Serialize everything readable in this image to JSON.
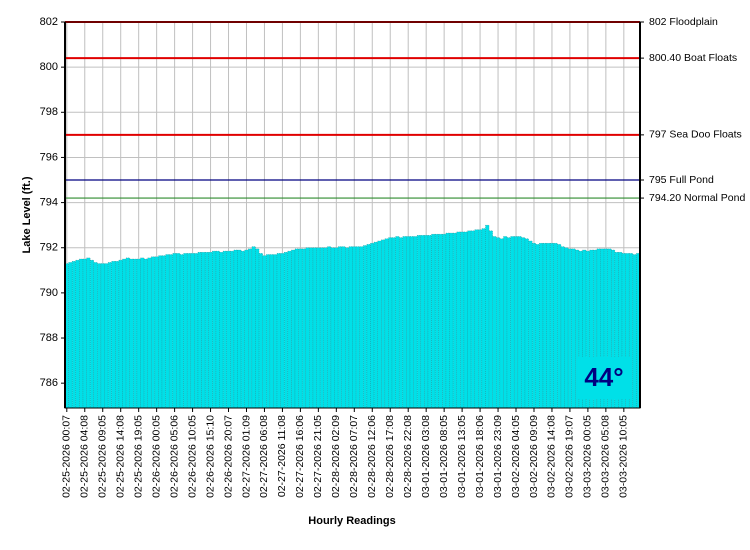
{
  "chart_data": {
    "type": "bar",
    "y_label": "Lake Level (ft.)",
    "x_label": "Hourly Readings",
    "badge": "44°",
    "color": "#00e0e8",
    "ylim": [
      784.9,
      802
    ],
    "yticks": [
      786,
      788,
      790,
      792,
      794,
      796,
      798,
      800,
      802
    ],
    "grid": true,
    "reference_lines": [
      {
        "label": "802 Floodplain",
        "value": 802,
        "color": "#e00000"
      },
      {
        "label": "800.40 Boat Floats",
        "value": 800.4,
        "color": "#e00000"
      },
      {
        "label": "797 Sea Doo Floats",
        "value": 797,
        "color": "#e00000"
      },
      {
        "label": "795 Full Pond",
        "value": 795,
        "color": "#000080"
      },
      {
        "label": "794.20 Normal Pond",
        "value": 794.2,
        "color": "#2e8b2e"
      }
    ],
    "categories": [
      "02-25-2026 00:07",
      null,
      null,
      null,
      null,
      "02-25-2026 04:08",
      null,
      null,
      null,
      null,
      "02-25-2026 09:05",
      null,
      null,
      null,
      null,
      "02-25-2026 14:08",
      null,
      null,
      null,
      null,
      "02-25-2026 19:05",
      null,
      null,
      null,
      null,
      "02-26-2026 00:05",
      null,
      null,
      null,
      null,
      "02-26-2026 05:06",
      null,
      null,
      null,
      null,
      "02-26-2026 10:05",
      null,
      null,
      null,
      null,
      "02-26-2026 15:10",
      null,
      null,
      null,
      null,
      "02-26-2026 20:07",
      null,
      null,
      null,
      null,
      "02-27-2026 01:09",
      null,
      null,
      null,
      null,
      "02-27-2026 06:08",
      null,
      null,
      null,
      null,
      "02-27-2026 11:08",
      null,
      null,
      null,
      null,
      "02-27-2026 16:06",
      null,
      null,
      null,
      null,
      "02-27-2026 21:05",
      null,
      null,
      null,
      null,
      "02-28-2026 02:09",
      null,
      null,
      null,
      null,
      "02-28-2026 07:07",
      null,
      null,
      null,
      null,
      "02-28-2026 12:06",
      null,
      null,
      null,
      null,
      "02-28-2026 17:08",
      null,
      null,
      null,
      null,
      "02-28-2026 22:08",
      null,
      null,
      null,
      null,
      "03-01-2026 03:08",
      null,
      null,
      null,
      null,
      "03-01-2026 08:05",
      null,
      null,
      null,
      null,
      "03-01-2026 13:05",
      null,
      null,
      null,
      null,
      "03-01-2026 18:06",
      null,
      null,
      null,
      null,
      "03-01-2026 23:09",
      null,
      null,
      null,
      null,
      "03-02-2026 04:05",
      null,
      null,
      null,
      null,
      "03-02-2026 09:09",
      null,
      null,
      null,
      null,
      "03-02-2026 14:08",
      null,
      null,
      null,
      null,
      "03-02-2026 19:07",
      null,
      null,
      null,
      null,
      "03-03-2026 00:05",
      null,
      null,
      null,
      null,
      "03-03-2026 05:08",
      null,
      null,
      null,
      null,
      "03-03-2026 10:05",
      null,
      null,
      null,
      null
    ],
    "values": [
      791.3,
      791.35,
      791.4,
      791.45,
      791.5,
      791.5,
      791.55,
      791.45,
      791.35,
      791.3,
      791.3,
      791.3,
      791.35,
      791.4,
      791.4,
      791.45,
      791.5,
      791.55,
      791.5,
      791.5,
      791.5,
      791.55,
      791.5,
      791.55,
      791.6,
      791.6,
      791.65,
      791.65,
      791.7,
      791.7,
      791.75,
      791.75,
      791.7,
      791.75,
      791.75,
      791.75,
      791.75,
      791.8,
      791.8,
      791.8,
      791.8,
      791.85,
      791.85,
      791.8,
      791.85,
      791.85,
      791.85,
      791.9,
      791.9,
      791.85,
      791.9,
      791.95,
      792.05,
      791.95,
      791.75,
      791.65,
      791.7,
      791.7,
      791.7,
      791.75,
      791.75,
      791.8,
      791.85,
      791.9,
      791.95,
      791.95,
      791.95,
      792.0,
      792.0,
      792.0,
      792.0,
      792.0,
      792.0,
      792.05,
      792.0,
      792.0,
      792.05,
      792.05,
      792.0,
      792.05,
      792.05,
      792.05,
      792.05,
      792.1,
      792.15,
      792.2,
      792.25,
      792.3,
      792.35,
      792.4,
      792.45,
      792.45,
      792.5,
      792.45,
      792.5,
      792.5,
      792.5,
      792.5,
      792.55,
      792.55,
      792.55,
      792.55,
      792.6,
      792.6,
      792.6,
      792.6,
      792.65,
      792.65,
      792.65,
      792.7,
      792.7,
      792.7,
      792.75,
      792.75,
      792.8,
      792.8,
      792.85,
      793.0,
      792.75,
      792.5,
      792.45,
      792.4,
      792.5,
      792.45,
      792.5,
      792.5,
      792.5,
      792.45,
      792.4,
      792.3,
      792.2,
      792.15,
      792.2,
      792.2,
      792.2,
      792.2,
      792.2,
      792.15,
      792.05,
      792.0,
      791.95,
      791.95,
      791.9,
      791.85,
      791.9,
      791.85,
      791.9,
      791.9,
      791.95,
      791.95,
      791.95,
      791.95,
      791.9,
      791.8,
      791.8,
      791.75,
      791.75,
      791.75,
      791.7,
      791.75
    ]
  }
}
